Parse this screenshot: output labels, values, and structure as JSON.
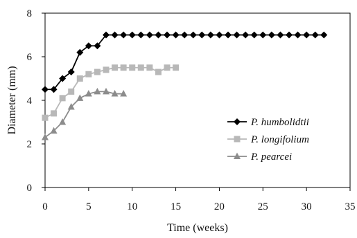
{
  "chart_data": {
    "type": "line",
    "title": "",
    "xlabel": "Time (weeks)",
    "ylabel": "Diameter (mm)",
    "xlim": [
      0,
      35
    ],
    "ylim": [
      0,
      8
    ],
    "xticks": [
      0,
      5,
      10,
      15,
      20,
      25,
      30,
      35
    ],
    "yticks": [
      0,
      2,
      4,
      6,
      8
    ],
    "grid": false,
    "legend_position": "right-middle",
    "series": [
      {
        "name": "P. humbolidtii",
        "color": "#000000",
        "marker": "diamond",
        "x": [
          0,
          1,
          2,
          3,
          4,
          5,
          6,
          7,
          8,
          9,
          10,
          11,
          12,
          13,
          14,
          15,
          16,
          17,
          18,
          19,
          20,
          21,
          22,
          23,
          24,
          25,
          26,
          27,
          28,
          29,
          30,
          31,
          32
        ],
        "y": [
          4.5,
          4.5,
          5.0,
          5.3,
          6.2,
          6.5,
          6.5,
          7.0,
          7.0,
          7.0,
          7.0,
          7.0,
          7.0,
          7.0,
          7.0,
          7.0,
          7.0,
          7.0,
          7.0,
          7.0,
          7.0,
          7.0,
          7.0,
          7.0,
          7.0,
          7.0,
          7.0,
          7.0,
          7.0,
          7.0,
          7.0,
          7.0,
          7.0
        ]
      },
      {
        "name": "P. longifolium",
        "color": "#b8b8b8",
        "marker": "square",
        "x": [
          0,
          1,
          2,
          3,
          4,
          5,
          6,
          7,
          8,
          9,
          10,
          11,
          12,
          13,
          14,
          15
        ],
        "y": [
          3.2,
          3.4,
          4.1,
          4.4,
          5.0,
          5.2,
          5.3,
          5.4,
          5.5,
          5.5,
          5.5,
          5.5,
          5.5,
          5.3,
          5.5,
          5.5
        ]
      },
      {
        "name": "P. pearcei",
        "color": "#8c8c8c",
        "marker": "triangle",
        "x": [
          0,
          1,
          2,
          3,
          4,
          5,
          6,
          7,
          8,
          9
        ],
        "y": [
          2.3,
          2.6,
          3.0,
          3.7,
          4.1,
          4.3,
          4.4,
          4.4,
          4.3,
          4.3
        ]
      }
    ]
  }
}
